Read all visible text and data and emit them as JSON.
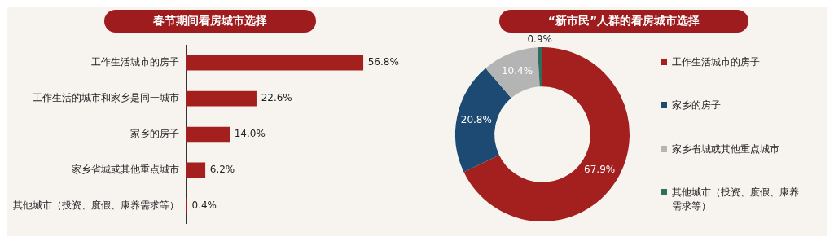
{
  "chart_data": [
    {
      "type": "bar",
      "orientation": "horizontal",
      "title": "春节期间看房城市选择",
      "categories": [
        "工作生活城市的房子",
        "工作生活的城市和家乡是同一城市",
        "家乡的房子",
        "家乡省城或其他重点城市",
        "其他城市（投资、度假、康养需求等）"
      ],
      "values": [
        56.8,
        22.6,
        14.0,
        6.2,
        0.4
      ],
      "color": "#a3201f",
      "value_labels": [
        "56.8%",
        "22.6%",
        "14.0%",
        "6.2%",
        "0.4%"
      ],
      "grid": false,
      "legend": false,
      "tick_labels": "y"
    },
    {
      "type": "donut",
      "title": "“新市民”人群的看房城市选择",
      "categories": [
        "工作生活城市的房子",
        "家乡的房子",
        "家乡省城或其他重点城市",
        "其他城市（投资、度假、康养需求等）"
      ],
      "values": [
        67.9,
        20.8,
        10.4,
        0.9
      ],
      "colors": [
        "#a3201f",
        "#1d4a72",
        "#b4b4b4",
        "#2e6e5e"
      ],
      "value_labels": [
        "67.9%",
        "20.8%",
        "10.4%",
        "0.9%"
      ],
      "legend": "right"
    }
  ]
}
